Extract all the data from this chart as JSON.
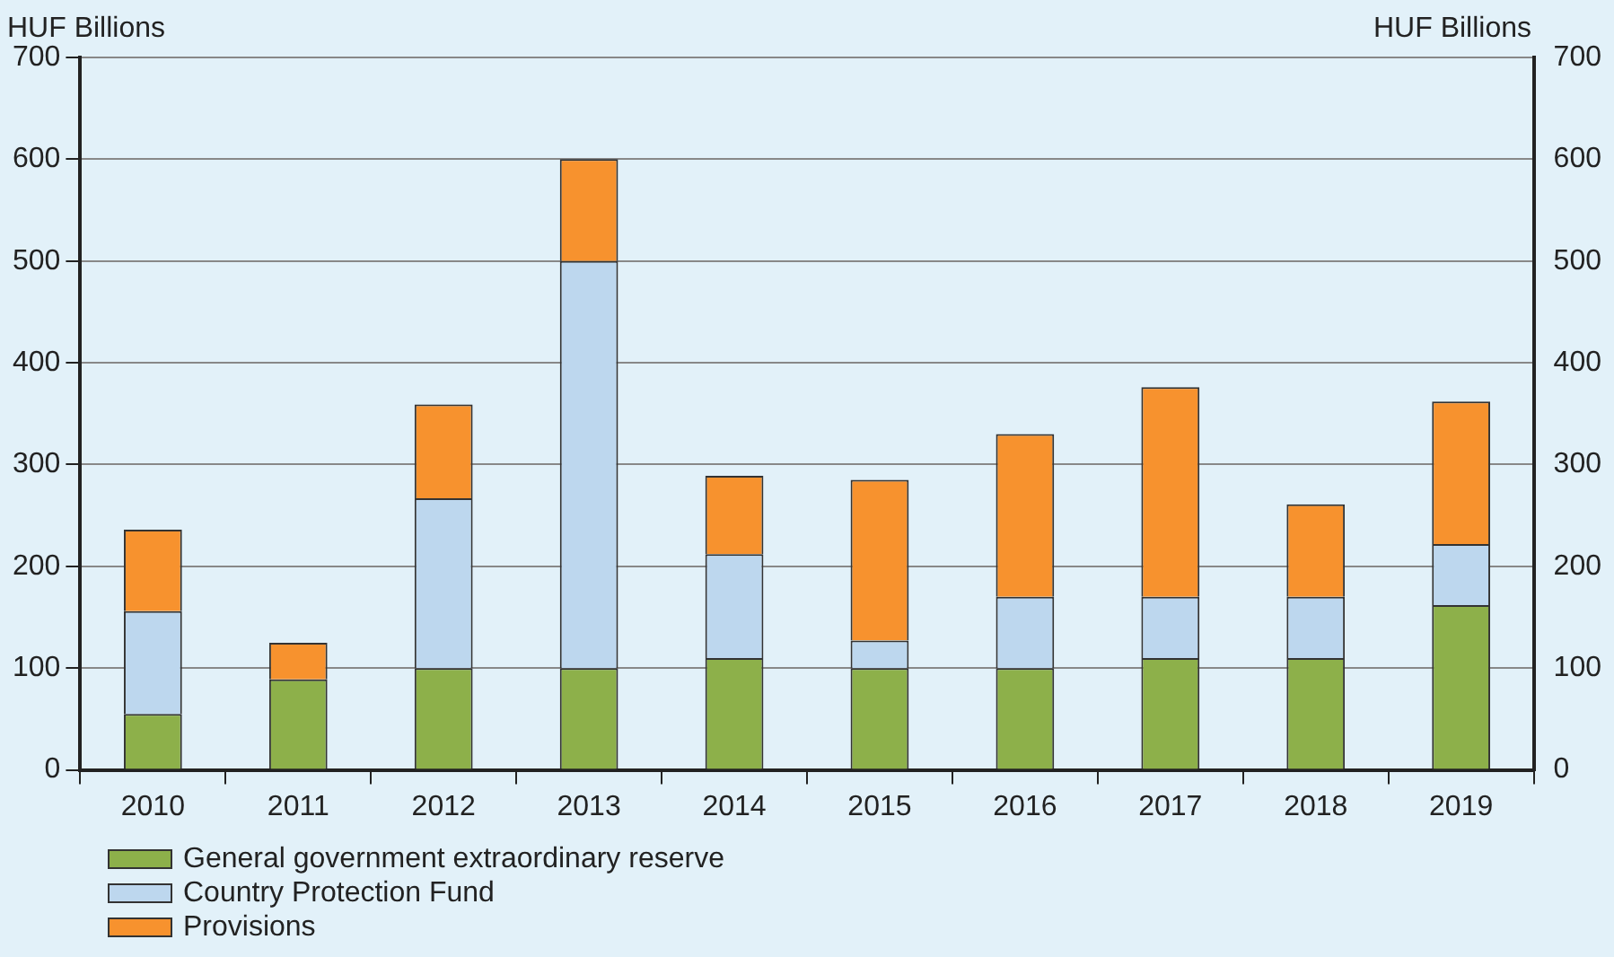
{
  "chart_data": {
    "type": "bar",
    "stacked": true,
    "ylabel": "HUF Billions",
    "y2label": "HUF Billions",
    "categories": [
      "2010",
      "2011",
      "2012",
      "2013",
      "2014",
      "2015",
      "2016",
      "2017",
      "2018",
      "2019"
    ],
    "series": [
      {
        "name": "General government extraordinary reserve",
        "color": "#8db04a",
        "values": [
          55,
          89,
          100,
          100,
          110,
          100,
          100,
          110,
          110,
          162
        ]
      },
      {
        "name": "Country Protection Fund",
        "color": "#bdd7ee",
        "values": [
          101,
          0,
          167,
          400,
          102,
          27,
          70,
          60,
          60,
          60
        ]
      },
      {
        "name": "Provisions",
        "color": "#f7922e",
        "values": [
          80,
          36,
          92,
          100,
          77,
          158,
          160,
          206,
          91,
          140
        ]
      }
    ],
    "ylim": [
      0,
      700
    ],
    "yticks": [
      0,
      100,
      200,
      300,
      400,
      500,
      600,
      700
    ],
    "y2lim": [
      0,
      700
    ],
    "y2ticks": [
      0,
      100,
      200,
      300,
      400,
      500,
      600,
      700
    ],
    "grid": "y",
    "legend": "bottom left"
  }
}
